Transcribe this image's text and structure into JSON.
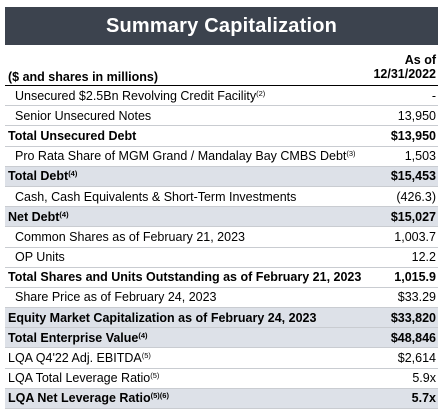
{
  "title": "Summary Capitalization",
  "header": {
    "units_label": "($ and shares in millions)",
    "as_of_line1": "As of",
    "as_of_line2": "12/31/2022"
  },
  "rows": [
    {
      "label": "Unsecured $2.5Bn Revolving Credit Facility",
      "note": "(2)",
      "value": "-",
      "bold": false,
      "indent": true,
      "shade": false
    },
    {
      "label": "Senior Unsecured Notes",
      "note": "",
      "value": "13,950",
      "bold": false,
      "indent": true,
      "shade": false
    },
    {
      "label": "Total Unsecured Debt",
      "note": "",
      "value": "$13,950",
      "bold": true,
      "indent": false,
      "shade": false
    },
    {
      "label": "Pro Rata Share of MGM Grand / Mandalay Bay CMBS Debt",
      "note": "(3)",
      "value": "1,503",
      "bold": false,
      "indent": true,
      "shade": false
    },
    {
      "label": "Total Debt",
      "note": "(4)",
      "value": "$15,453",
      "bold": true,
      "indent": false,
      "shade": true
    },
    {
      "label": "Cash, Cash Equivalents & Short-Term Investments",
      "note": "",
      "value": "(426.3)",
      "bold": false,
      "indent": true,
      "shade": false
    },
    {
      "label": "Net Debt",
      "note": "(4)",
      "value": "$15,027",
      "bold": true,
      "indent": false,
      "shade": true
    },
    {
      "label": "Common Shares as of February 21, 2023",
      "note": "",
      "value": "1,003.7",
      "bold": false,
      "indent": true,
      "shade": false
    },
    {
      "label": "OP Units",
      "note": "",
      "value": "12.2",
      "bold": false,
      "indent": true,
      "shade": false
    },
    {
      "label": "Total Shares and Units Outstanding as of February 21, 2023",
      "note": "",
      "value": "1,015.9",
      "bold": true,
      "indent": false,
      "shade": false
    },
    {
      "label": "Share Price as of February 24, 2023",
      "note": "",
      "value": "$33.29",
      "bold": false,
      "indent": true,
      "shade": false
    },
    {
      "label": "Equity Market Capitalization as of February 24, 2023",
      "note": "",
      "value": "$33,820",
      "bold": true,
      "indent": false,
      "shade": true
    },
    {
      "label": "Total Enterprise Value",
      "note": "(4)",
      "value": "$48,846",
      "bold": true,
      "indent": false,
      "shade": true
    },
    {
      "label": "LQA Q4'22 Adj. EBITDA",
      "note": "(5)",
      "value": "$2,614",
      "bold": false,
      "indent": false,
      "shade": false
    },
    {
      "label": "LQA Total Leverage Ratio",
      "note": "(5)",
      "value": "5.9x",
      "bold": false,
      "indent": false,
      "shade": false
    },
    {
      "label": "LQA Net Leverage Ratio",
      "note": "(5)(6)",
      "value": "5.7x",
      "bold": true,
      "indent": false,
      "shade": true
    }
  ]
}
